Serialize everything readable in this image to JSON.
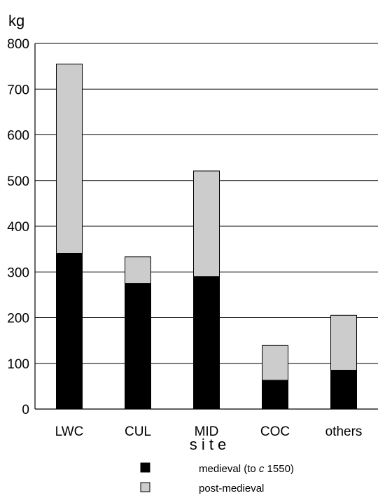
{
  "chart_data": {
    "type": "bar",
    "stacked": true,
    "ylabel": "kg",
    "xlabel": "s i t e",
    "ylim": [
      0,
      800
    ],
    "yticks": [
      0,
      100,
      200,
      300,
      400,
      500,
      600,
      700,
      800
    ],
    "grid": true,
    "categories": [
      "LWC",
      "CUL",
      "MID",
      "COC",
      "others"
    ],
    "series": [
      {
        "name": "medieval (to c 1550)",
        "color": "#000000",
        "values": [
          341,
          275,
          290,
          63,
          85
        ]
      },
      {
        "name": "post-medieval",
        "color": "#cccccc",
        "values": [
          414,
          58,
          231,
          76,
          120
        ]
      }
    ],
    "legend_position": "bottom"
  }
}
